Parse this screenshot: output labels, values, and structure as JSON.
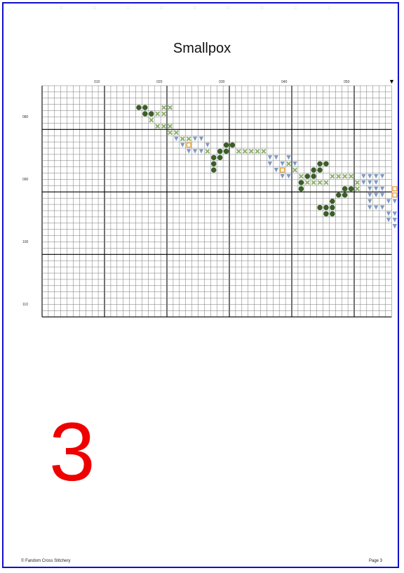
{
  "header": {
    "ghost_text": "= = = = = = = = ="
  },
  "title": "Smallpox",
  "grid": {
    "col_labels": [
      "010",
      "020",
      "030",
      "040",
      "050"
    ],
    "row_labels": [
      "080",
      "090",
      "100",
      "110"
    ],
    "marker": "▼"
  },
  "colors": {
    "frame": "#1010c8",
    "grid_line": "#777777",
    "grid_major": "#000000",
    "dark_green": "#3a5e28",
    "light_green": "#8fb070",
    "blue": "#7f9ac4",
    "orange": "#e8a23c",
    "page_number": "#ee0000"
  },
  "stitches": {
    "dark_green": [
      [
        15,
        3
      ],
      [
        16,
        3
      ],
      [
        16,
        4
      ],
      [
        17,
        4
      ],
      [
        29,
        9
      ],
      [
        30,
        9
      ],
      [
        28,
        10
      ],
      [
        29,
        10
      ],
      [
        27,
        11
      ],
      [
        28,
        11
      ],
      [
        27,
        12
      ],
      [
        27,
        13
      ],
      [
        44,
        12
      ],
      [
        45,
        12
      ],
      [
        43,
        13
      ],
      [
        44,
        13
      ],
      [
        42,
        14
      ],
      [
        43,
        14
      ],
      [
        41,
        15
      ],
      [
        41,
        16
      ],
      [
        48,
        16
      ],
      [
        49,
        16
      ],
      [
        47,
        17
      ],
      [
        48,
        17
      ],
      [
        46,
        18
      ],
      [
        45,
        19
      ],
      [
        46,
        19
      ],
      [
        44,
        19
      ],
      [
        45,
        20
      ],
      [
        46,
        20
      ]
    ],
    "light_green": [
      [
        19,
        3
      ],
      [
        20,
        3
      ],
      [
        18,
        4
      ],
      [
        19,
        4
      ],
      [
        17,
        5
      ],
      [
        18,
        6
      ],
      [
        19,
        6
      ],
      [
        20,
        6
      ],
      [
        20,
        7
      ],
      [
        21,
        7
      ],
      [
        22,
        8
      ],
      [
        23,
        8
      ],
      [
        26,
        10
      ],
      [
        31,
        10
      ],
      [
        32,
        10
      ],
      [
        33,
        10
      ],
      [
        34,
        10
      ],
      [
        35,
        10
      ],
      [
        39,
        12
      ],
      [
        40,
        13
      ],
      [
        41,
        14
      ],
      [
        42,
        15
      ],
      [
        43,
        15
      ],
      [
        44,
        15
      ],
      [
        45,
        15
      ],
      [
        46,
        14
      ],
      [
        47,
        14
      ],
      [
        48,
        14
      ],
      [
        49,
        14
      ],
      [
        50,
        15
      ],
      [
        50,
        16
      ]
    ],
    "blue": [
      [
        21,
        8
      ],
      [
        22,
        9
      ],
      [
        23,
        9
      ],
      [
        23,
        10
      ],
      [
        24,
        8
      ],
      [
        25,
        8
      ],
      [
        24,
        10
      ],
      [
        25,
        10
      ],
      [
        26,
        9
      ],
      [
        36,
        11
      ],
      [
        37,
        11
      ],
      [
        36,
        12
      ],
      [
        37,
        13
      ],
      [
        38,
        12
      ],
      [
        38,
        14
      ],
      [
        39,
        14
      ],
      [
        39,
        11
      ],
      [
        40,
        12
      ],
      [
        51,
        14
      ],
      [
        52,
        14
      ],
      [
        53,
        14
      ],
      [
        54,
        14
      ],
      [
        51,
        15
      ],
      [
        52,
        15
      ],
      [
        53,
        15
      ],
      [
        52,
        16
      ],
      [
        53,
        16
      ],
      [
        54,
        16
      ],
      [
        52,
        17
      ],
      [
        53,
        17
      ],
      [
        54,
        17
      ],
      [
        52,
        18
      ],
      [
        55,
        18
      ],
      [
        56,
        18
      ],
      [
        52,
        19
      ],
      [
        53,
        19
      ],
      [
        54,
        19
      ],
      [
        55,
        20
      ],
      [
        56,
        20
      ],
      [
        55,
        21
      ],
      [
        56,
        21
      ],
      [
        56,
        22
      ]
    ],
    "orange": [
      [
        23,
        9
      ],
      [
        38,
        13
      ],
      [
        56,
        16
      ],
      [
        56,
        17
      ]
    ]
  },
  "page_number": "3",
  "footer": {
    "left": "© Fandom Cross Stitchery",
    "right": "Page 3"
  }
}
